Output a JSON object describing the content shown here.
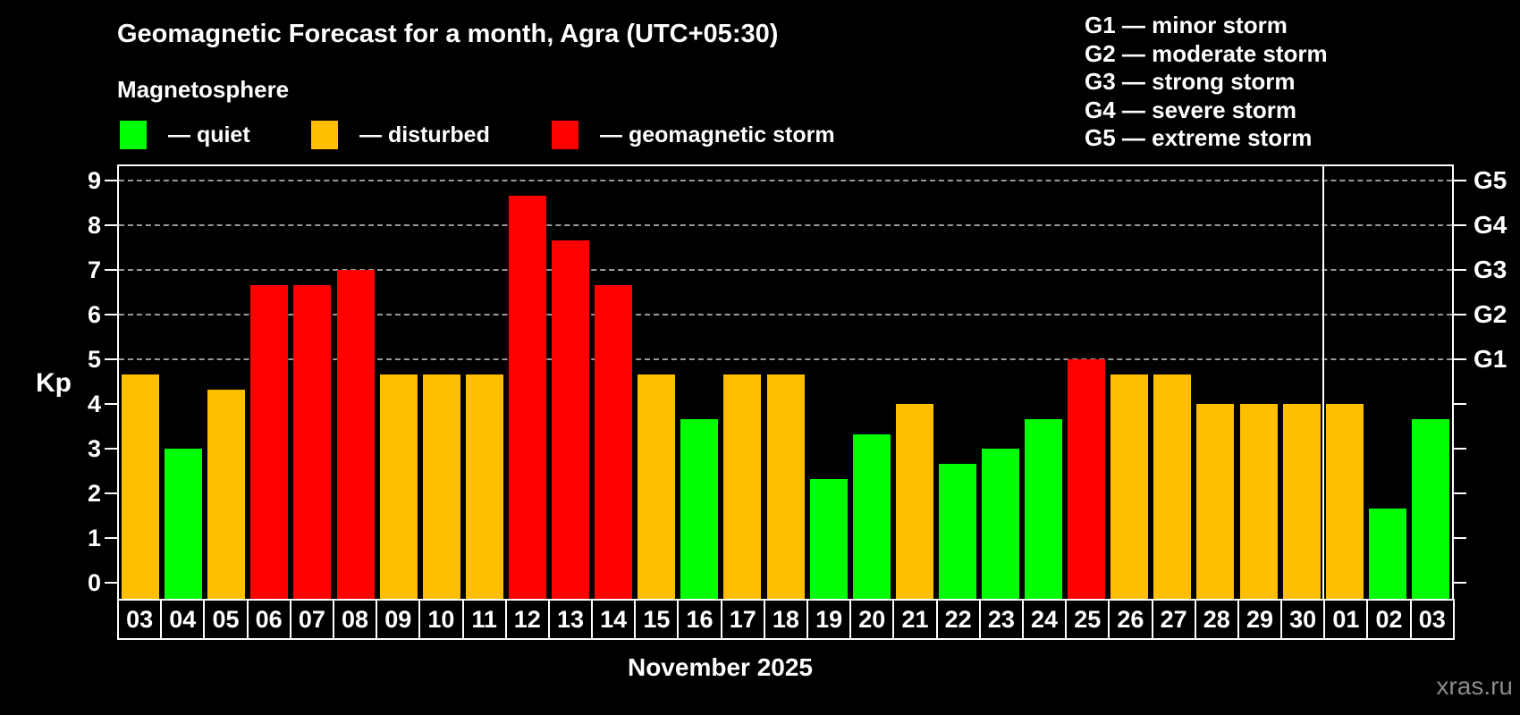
{
  "title": "Geomagnetic Forecast for a month, Agra (UTC+05:30)",
  "subtitle": "Magnetosphere",
  "legend": [
    {
      "status": "quiet",
      "label": "— quiet",
      "color": "#00ff00"
    },
    {
      "status": "disturbed",
      "label": "— disturbed",
      "color": "#ffbf00"
    },
    {
      "status": "storm",
      "label": "— geomagnetic storm",
      "color": "#ff0000"
    }
  ],
  "g_scale_legend": [
    {
      "label": "G1 — minor storm"
    },
    {
      "label": "G2 — moderate storm"
    },
    {
      "label": "G3 — strong storm"
    },
    {
      "label": "G4 — severe storm"
    },
    {
      "label": "G5 — extreme storm"
    }
  ],
  "axis": {
    "kp_label": "Kp",
    "kp_ticks": [
      0,
      1,
      2,
      3,
      4,
      5,
      6,
      7,
      8,
      9
    ],
    "g_labels": [
      {
        "kp": 5,
        "text": "G1"
      },
      {
        "kp": 6,
        "text": "G2"
      },
      {
        "kp": 7,
        "text": "G3"
      },
      {
        "kp": 8,
        "text": "G4"
      },
      {
        "kp": 9,
        "text": "G5"
      }
    ]
  },
  "footer": {
    "month_label": "November 2025",
    "watermark": "xras.ru"
  },
  "chart_data": {
    "type": "bar",
    "title": "Geomagnetic Forecast for a month, Agra (UTC+05:30)",
    "xlabel": "November 2025",
    "ylabel": "Kp",
    "ylim": [
      0,
      9.3
    ],
    "grid": "dashed horizontal lines at Kp 5-9 only",
    "gridlines_kp": [
      5,
      6,
      7,
      8,
      9
    ],
    "month_separator_after_index": 27,
    "categories": [
      "03",
      "04",
      "05",
      "06",
      "07",
      "08",
      "09",
      "10",
      "11",
      "12",
      "13",
      "14",
      "15",
      "16",
      "17",
      "18",
      "19",
      "20",
      "21",
      "22",
      "23",
      "24",
      "25",
      "26",
      "27",
      "28",
      "29",
      "30",
      "01",
      "02",
      "03"
    ],
    "series": [
      {
        "name": "Kp forecast",
        "values": [
          4.67,
          3.0,
          4.33,
          6.67,
          6.67,
          7.0,
          4.67,
          4.67,
          4.67,
          8.67,
          7.67,
          6.67,
          4.67,
          3.67,
          4.67,
          4.67,
          2.33,
          3.33,
          4.0,
          2.67,
          3.0,
          3.67,
          5.0,
          4.67,
          4.67,
          4.0,
          4.0,
          4.0,
          4.0,
          1.67,
          3.67
        ]
      }
    ],
    "statuses": [
      "disturbed",
      "quiet",
      "disturbed",
      "storm",
      "storm",
      "storm",
      "disturbed",
      "disturbed",
      "disturbed",
      "storm",
      "storm",
      "storm",
      "disturbed",
      "quiet",
      "disturbed",
      "disturbed",
      "quiet",
      "quiet",
      "disturbed",
      "quiet",
      "quiet",
      "quiet",
      "storm",
      "disturbed",
      "disturbed",
      "disturbed",
      "disturbed",
      "disturbed",
      "disturbed",
      "quiet",
      "quiet"
    ],
    "colors": {
      "quiet": "#00ff00",
      "disturbed": "#ffbf00",
      "storm": "#ff0000"
    }
  }
}
